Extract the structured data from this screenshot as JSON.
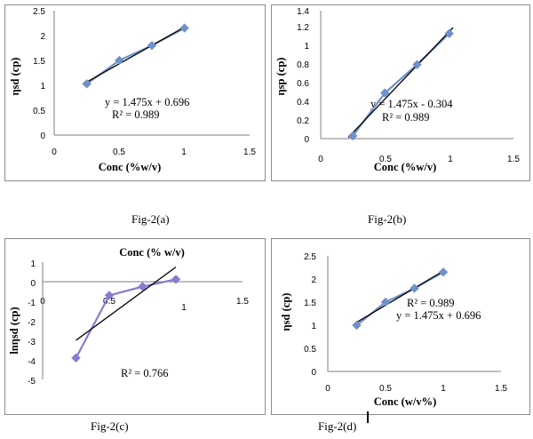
{
  "captions": [
    "Fig-2(a)",
    "Fig-2(b)",
    "Fig-2(c)",
    "Fig-2(d)"
  ],
  "colors": {
    "series": "#7090c8",
    "series_c": "#8a7ad0",
    "trendline": "#000000"
  },
  "chart_data": [
    {
      "type": "scatter",
      "xlabel": "Conc (%w/v)",
      "ylabel": "ηsd (cp)",
      "xlim": [
        0,
        1.5
      ],
      "ylim": [
        0,
        2.5
      ],
      "xticks": [
        "0",
        "0.5",
        "1",
        "1.5"
      ],
      "yticks": [
        "0",
        "0.5",
        "1",
        "1.5",
        "2",
        "2.5"
      ],
      "series": [
        {
          "x": [
            0.25,
            0.5,
            0.75,
            1.0
          ],
          "y": [
            1.03,
            1.5,
            1.8,
            2.15
          ],
          "marker": "diamond"
        }
      ],
      "trendline": {
        "slope": 1.475,
        "intercept": 0.696
      },
      "annotations": [
        "y = 1.475x + 0.696",
        "R² = 0.989"
      ],
      "grid": false
    },
    {
      "type": "scatter",
      "xlabel": "Conc  (%w/v)",
      "ylabel": "ηsp (cp)",
      "xlim": [
        0,
        1.5
      ],
      "ylim": [
        0,
        1.4
      ],
      "xticks": [
        "0",
        "0.5",
        "1",
        "1.5"
      ],
      "yticks": [
        "0",
        "0.2",
        "0.4",
        "0.6",
        "0.8",
        "1",
        "1.2",
        "1.4"
      ],
      "series": [
        {
          "x": [
            0.25,
            0.5,
            0.75,
            1.0
          ],
          "y": [
            0.03,
            0.5,
            0.81,
            1.15
          ],
          "marker": "diamond"
        }
      ],
      "trendline": {
        "slope": 1.475,
        "intercept": -0.304
      },
      "annotations": [
        "y = 1.475x - 0.304",
        "R² = 0.989"
      ],
      "grid": false
    },
    {
      "type": "line",
      "xlabel": "Conc (% w/v)",
      "ylabel": "lnηsd (cp)",
      "xlim": [
        0,
        1.5
      ],
      "ylim": [
        -5,
        1
      ],
      "xticks": [
        "0",
        "0.5",
        "1",
        "1.5"
      ],
      "yticks": [
        "-5",
        "-4",
        "-3",
        "-2",
        "-1",
        "0",
        "1"
      ],
      "series": [
        {
          "x": [
            0.25,
            0.5,
            0.75,
            1.0
          ],
          "y": [
            -3.9,
            -0.7,
            -0.25,
            0.12
          ],
          "marker": "diamond"
        }
      ],
      "trendline": {
        "slope": 5.0,
        "intercept": -4.25
      },
      "annotations": [
        "R² = 0.766"
      ],
      "grid": false
    },
    {
      "type": "scatter",
      "xlabel": "Conc (w/v%)",
      "ylabel": "ηsd (cp)",
      "xlim": [
        0,
        1.5
      ],
      "ylim": [
        0,
        2.5
      ],
      "xticks": [
        "0",
        "0.5",
        "1",
        "1.5"
      ],
      "yticks": [
        "0",
        "0.5",
        "1",
        "1.5",
        "2",
        "2.5"
      ],
      "series": [
        {
          "x": [
            0.25,
            0.5,
            0.75,
            1.0
          ],
          "y": [
            1.0,
            1.5,
            1.8,
            2.15
          ],
          "marker": "diamond"
        }
      ],
      "trendline": {
        "slope": 1.475,
        "intercept": 0.696
      },
      "annotations": [
        "R² = 0.989",
        "y = 1.475x + 0.696"
      ],
      "grid": false
    }
  ]
}
